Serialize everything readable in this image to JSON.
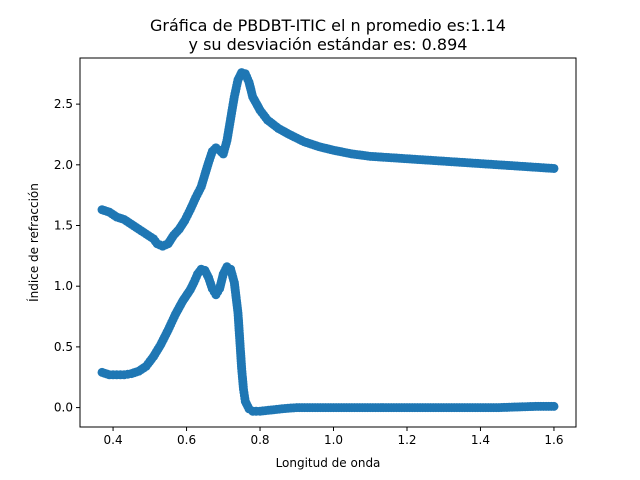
{
  "chart_data": {
    "type": "scatter",
    "title": "Gráfica de PBDBT-ITIC el n promedio es:1.14",
    "subtitle": "y su desviación estándar es: 0.894",
    "xlabel": "Longitud de onda",
    "ylabel": "Índice de refracción",
    "xlim": [
      0.31,
      1.66
    ],
    "ylim": [
      -0.16,
      2.88
    ],
    "xticks": [
      0.4,
      0.6,
      0.8,
      1.0,
      1.2,
      1.4,
      1.6
    ],
    "xtick_labels": [
      "0.4",
      "0.6",
      "0.8",
      "1.0",
      "1.2",
      "1.4",
      "1.6"
    ],
    "yticks": [
      0.0,
      0.5,
      1.0,
      1.5,
      2.0,
      2.5
    ],
    "ytick_labels": [
      "0.0",
      "0.5",
      "1.0",
      "1.5",
      "2.0",
      "2.5"
    ],
    "grid": false,
    "marker_color": "#1f77b4",
    "series": [
      {
        "values": [
          [
            0.37,
            1.63
          ],
          [
            0.39,
            1.61
          ],
          [
            0.41,
            1.57
          ],
          [
            0.43,
            1.55
          ],
          [
            0.45,
            1.51
          ],
          [
            0.47,
            1.47
          ],
          [
            0.49,
            1.43
          ],
          [
            0.51,
            1.39
          ],
          [
            0.52,
            1.35
          ],
          [
            0.535,
            1.33
          ],
          [
            0.55,
            1.35
          ],
          [
            0.565,
            1.42
          ],
          [
            0.58,
            1.47
          ],
          [
            0.595,
            1.54
          ],
          [
            0.61,
            1.63
          ],
          [
            0.625,
            1.73
          ],
          [
            0.64,
            1.82
          ],
          [
            0.65,
            1.92
          ],
          [
            0.66,
            2.02
          ],
          [
            0.67,
            2.11
          ],
          [
            0.68,
            2.14
          ],
          [
            0.69,
            2.12
          ],
          [
            0.7,
            2.09
          ],
          [
            0.71,
            2.2
          ],
          [
            0.72,
            2.38
          ],
          [
            0.73,
            2.56
          ],
          [
            0.74,
            2.7
          ],
          [
            0.75,
            2.76
          ],
          [
            0.76,
            2.75
          ],
          [
            0.77,
            2.68
          ],
          [
            0.78,
            2.56
          ],
          [
            0.8,
            2.45
          ],
          [
            0.82,
            2.37
          ],
          [
            0.85,
            2.3
          ],
          [
            0.88,
            2.25
          ],
          [
            0.92,
            2.19
          ],
          [
            0.96,
            2.15
          ],
          [
            1.0,
            2.12
          ],
          [
            1.05,
            2.09
          ],
          [
            1.1,
            2.07
          ],
          [
            1.15,
            2.06
          ],
          [
            1.2,
            2.05
          ],
          [
            1.25,
            2.04
          ],
          [
            1.3,
            2.03
          ],
          [
            1.35,
            2.02
          ],
          [
            1.4,
            2.01
          ],
          [
            1.45,
            2.0
          ],
          [
            1.5,
            1.99
          ],
          [
            1.55,
            1.98
          ],
          [
            1.6,
            1.97
          ]
        ]
      },
      {
        "values": [
          [
            0.37,
            0.29
          ],
          [
            0.39,
            0.27
          ],
          [
            0.41,
            0.27
          ],
          [
            0.43,
            0.27
          ],
          [
            0.45,
            0.28
          ],
          [
            0.47,
            0.3
          ],
          [
            0.49,
            0.34
          ],
          [
            0.51,
            0.42
          ],
          [
            0.53,
            0.52
          ],
          [
            0.55,
            0.64
          ],
          [
            0.57,
            0.77
          ],
          [
            0.59,
            0.88
          ],
          [
            0.61,
            0.97
          ],
          [
            0.62,
            1.03
          ],
          [
            0.63,
            1.1
          ],
          [
            0.64,
            1.14
          ],
          [
            0.65,
            1.13
          ],
          [
            0.66,
            1.07
          ],
          [
            0.67,
            0.98
          ],
          [
            0.68,
            0.93
          ],
          [
            0.69,
            0.98
          ],
          [
            0.7,
            1.1
          ],
          [
            0.71,
            1.16
          ],
          [
            0.72,
            1.14
          ],
          [
            0.73,
            1.03
          ],
          [
            0.74,
            0.78
          ],
          [
            0.745,
            0.55
          ],
          [
            0.75,
            0.32
          ],
          [
            0.755,
            0.15
          ],
          [
            0.76,
            0.05
          ],
          [
            0.77,
            -0.01
          ],
          [
            0.78,
            -0.03
          ],
          [
            0.8,
            -0.03
          ],
          [
            0.83,
            -0.02
          ],
          [
            0.86,
            -0.01
          ],
          [
            0.9,
            0.0
          ],
          [
            0.95,
            0.0
          ],
          [
            1.0,
            0.0
          ],
          [
            1.05,
            0.0
          ],
          [
            1.1,
            0.0
          ],
          [
            1.15,
            0.0
          ],
          [
            1.2,
            0.0
          ],
          [
            1.25,
            0.0
          ],
          [
            1.3,
            0.0
          ],
          [
            1.35,
            0.0
          ],
          [
            1.4,
            0.0
          ],
          [
            1.45,
            0.0
          ],
          [
            1.5,
            0.005
          ],
          [
            1.55,
            0.01
          ],
          [
            1.6,
            0.01
          ]
        ]
      }
    ]
  }
}
